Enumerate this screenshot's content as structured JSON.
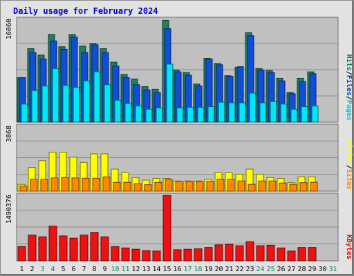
{
  "chart_data": {
    "type": "bar",
    "title": "Daily usage for February 2024",
    "categories": [
      "1",
      "2",
      "3",
      "4",
      "5",
      "6",
      "7",
      "8",
      "9",
      "10",
      "11",
      "12",
      "13",
      "14",
      "15",
      "16",
      "17",
      "18",
      "19",
      "20",
      "21",
      "22",
      "23",
      "24",
      "25",
      "26",
      "27",
      "28",
      "29",
      "30",
      "31"
    ],
    "weekend_days": [
      3,
      4,
      10,
      11,
      17,
      18,
      24,
      25,
      31
    ],
    "panels": [
      {
        "max_label": "16060",
        "ylim": [
          0,
          16060
        ],
        "axis_labels": [
          {
            "text": "Pages",
            "color": "#00cccc"
          },
          {
            "text": "Files",
            "color": "#0044cc"
          },
          {
            "text": "Hits",
            "color": "#008855"
          }
        ],
        "series": [
          {
            "name": "Hits",
            "color": "#1f7f5f",
            "values": [
              6900,
              11400,
              10400,
              13600,
              11700,
              13600,
              11800,
              12200,
              11400,
              9300,
              7400,
              6700,
              5500,
              5100,
              15800,
              8100,
              7700,
              5900,
              9900,
              9100,
              7200,
              8500,
              13900,
              8300,
              8000,
              6800,
              4600,
              6800,
              7800,
              null,
              null
            ]
          },
          {
            "name": "Files",
            "color": "#0f4fd6",
            "values": [
              6900,
              10800,
              9800,
              12600,
              11300,
              13200,
              10800,
              12000,
              10800,
              8700,
              6900,
              5800,
              5000,
              4600,
              14500,
              7800,
              7300,
              5600,
              9800,
              8900,
              7100,
              8600,
              13400,
              8100,
              7700,
              6400,
              4400,
              6300,
              7500,
              null,
              null
            ]
          },
          {
            "name": "Pages",
            "color": "#00e8f8",
            "values": [
              2800,
              4900,
              5600,
              8300,
              5700,
              5400,
              6400,
              7800,
              5800,
              3400,
              2900,
              2500,
              2000,
              2200,
              9000,
              2200,
              2300,
              2300,
              2400,
              3100,
              3000,
              3000,
              4500,
              3000,
              3200,
              2800,
              2000,
              2400,
              2500,
              null,
              null
            ]
          }
        ]
      },
      {
        "max_label": "3868",
        "ylim": [
          0,
          3868
        ],
        "axis_labels": [
          {
            "text": "Sites",
            "color": "#ff8800"
          },
          {
            "text": "Visits",
            "color": "#ffff00"
          }
        ],
        "series": [
          {
            "name": "Visits",
            "color": "#ffff00",
            "values": [
              400,
              1400,
              1800,
              2300,
              2300,
              2000,
              1700,
              2200,
              2200,
              1300,
              1100,
              800,
              650,
              750,
              750,
              600,
              600,
              600,
              700,
              1100,
              1100,
              1000,
              1300,
              1000,
              800,
              750,
              500,
              850,
              850,
              null,
              null
            ]
          },
          {
            "name": "Sites",
            "color": "#ff8800",
            "values": [
              300,
              700,
              700,
              780,
              800,
              780,
              760,
              760,
              840,
              520,
              520,
              440,
              380,
              520,
              700,
              560,
              580,
              560,
              580,
              700,
              700,
              600,
              400,
              600,
              600,
              480,
              400,
              500,
              520,
              null,
              null
            ]
          }
        ]
      },
      {
        "max_label": "1490376",
        "ylim": [
          0,
          1490376
        ],
        "axis_labels": [
          {
            "text": "KBytes",
            "color": "#ee0000"
          }
        ],
        "series": [
          {
            "name": "KBytes",
            "color": "#ee1111",
            "values": [
              320000,
              580000,
              540000,
              780000,
              560000,
              510000,
              580000,
              640000,
              540000,
              320000,
              290000,
              260000,
              230000,
              220000,
              1470000,
              250000,
              260000,
              270000,
              300000,
              360000,
              370000,
              340000,
              430000,
              340000,
              350000,
              290000,
              220000,
              300000,
              300000,
              null,
              null
            ]
          }
        ]
      }
    ],
    "grid": true,
    "legend": "right-vertical"
  }
}
